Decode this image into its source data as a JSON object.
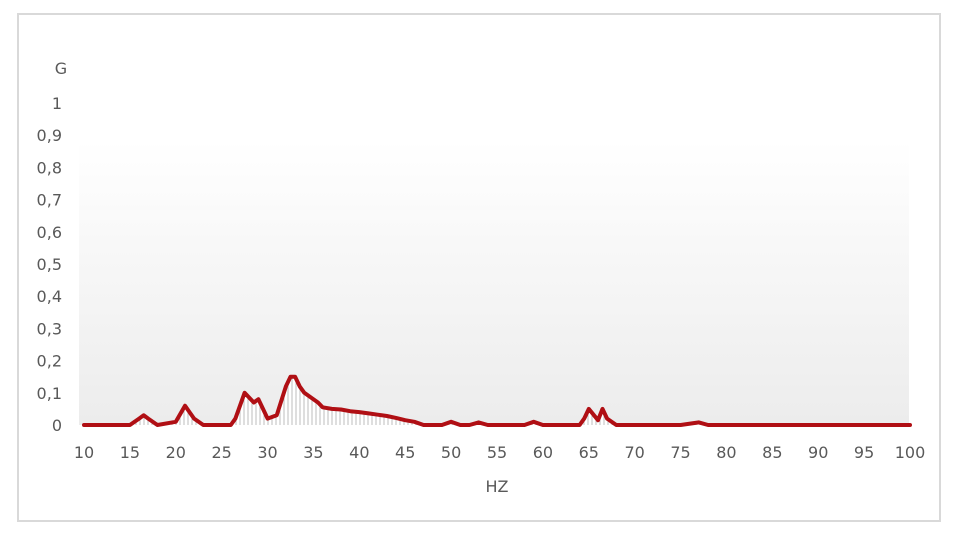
{
  "chart_data": {
    "type": "line",
    "title": "",
    "xlabel": "HZ",
    "ylabel": "G",
    "xlim": [
      10,
      100
    ],
    "ylim": [
      0,
      1
    ],
    "x_ticks": [
      "10",
      "15",
      "20",
      "25",
      "30",
      "35",
      "40",
      "45",
      "50",
      "55",
      "60",
      "65",
      "70",
      "75",
      "80",
      "85",
      "90",
      "95",
      "100"
    ],
    "y_ticks": [
      "0",
      "0,1",
      "0,2",
      "0,3",
      "0,4",
      "0,5",
      "0,6",
      "0,7",
      "0,8",
      "0,9",
      "1"
    ],
    "grid": false,
    "legend": "none",
    "series_color": "#b00f14",
    "fill_color": "#c8c8c8",
    "series": [
      {
        "x": [
          10,
          15,
          16,
          16.5,
          17,
          18,
          20,
          21,
          21.5,
          22,
          23,
          26,
          26.5,
          27.5,
          28.5,
          29,
          29.5,
          30,
          31,
          32,
          32.5,
          33,
          33.5,
          34,
          35,
          35.5,
          36,
          37,
          38,
          39,
          40,
          41,
          42,
          43,
          44,
          45,
          46,
          47,
          49,
          50,
          51,
          52,
          53,
          54,
          58,
          59,
          60,
          61,
          64,
          64.5,
          65,
          66,
          66.5,
          67,
          68,
          75,
          77,
          78,
          80,
          100
        ],
        "y": [
          0,
          0,
          0.02,
          0.03,
          0.02,
          0,
          0.01,
          0.06,
          0.04,
          0.02,
          0,
          0,
          0.02,
          0.1,
          0.07,
          0.08,
          0.05,
          0.02,
          0.03,
          0.12,
          0.15,
          0.15,
          0.12,
          0.1,
          0.08,
          0.07,
          0.055,
          0.05,
          0.048,
          0.043,
          0.04,
          0.036,
          0.032,
          0.028,
          0.022,
          0.015,
          0.01,
          0,
          0,
          0.01,
          0,
          0,
          0.008,
          0,
          0,
          0.01,
          0,
          0,
          0,
          0.02,
          0.05,
          0.015,
          0.05,
          0.02,
          0,
          0,
          0.008,
          0,
          0,
          0
        ]
      }
    ]
  }
}
